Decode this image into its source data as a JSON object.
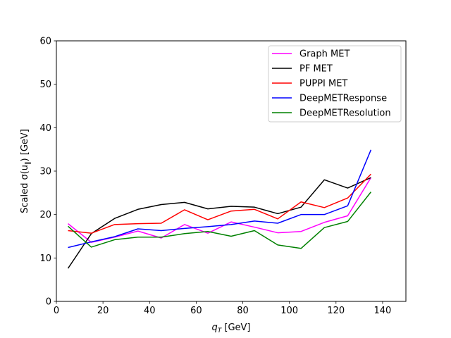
{
  "chart_data": {
    "type": "line",
    "xlabel_main": "q",
    "xlabel_sub": "T",
    "xlabel_unit": " [GeV]",
    "ylabel_pre": "Scaled σ(u",
    "ylabel_sub": "∥",
    "ylabel_post": ") [GeV]",
    "xlim": [
      0,
      150
    ],
    "ylim": [
      0,
      60
    ],
    "xticks": [
      0,
      20,
      40,
      60,
      80,
      100,
      120,
      140
    ],
    "yticks": [
      0,
      10,
      20,
      30,
      40,
      50,
      60
    ],
    "grid": false,
    "legend_position": "top-right",
    "x": [
      5,
      15,
      25,
      35,
      45,
      55,
      65,
      75,
      85,
      95,
      105,
      115,
      125,
      135
    ],
    "series": [
      {
        "name": "Graph MET",
        "color": "#ff00ff",
        "values": [
          17.9,
          13.6,
          14.8,
          16.2,
          14.6,
          17.7,
          15.7,
          18.3,
          17.1,
          15.8,
          16.1,
          18.2,
          19.7,
          28.5
        ]
      },
      {
        "name": "PF MET",
        "color": "#000000",
        "values": [
          7.6,
          15.6,
          19.1,
          21.2,
          22.3,
          22.8,
          21.3,
          21.9,
          21.7,
          20.2,
          21.7,
          28.0,
          26.1,
          28.5
        ]
      },
      {
        "name": "PUPPI MET",
        "color": "#ff0000",
        "values": [
          16.3,
          15.7,
          17.7,
          17.9,
          18.0,
          21.1,
          18.8,
          20.8,
          21.2,
          19.0,
          22.9,
          21.6,
          23.8,
          29.3
        ]
      },
      {
        "name": "DeepMETResponse",
        "color": "#0000ff",
        "values": [
          12.4,
          13.7,
          14.9,
          16.7,
          16.3,
          16.8,
          17.2,
          17.7,
          18.5,
          18.0,
          20.0,
          20.0,
          22.0,
          34.9
        ]
      },
      {
        "name": "DeepMETResolution",
        "color": "#008000",
        "values": [
          17.3,
          12.5,
          14.2,
          14.8,
          14.8,
          15.6,
          16.1,
          15.0,
          16.3,
          13.0,
          12.2,
          17.0,
          18.4,
          25.2
        ]
      }
    ]
  }
}
